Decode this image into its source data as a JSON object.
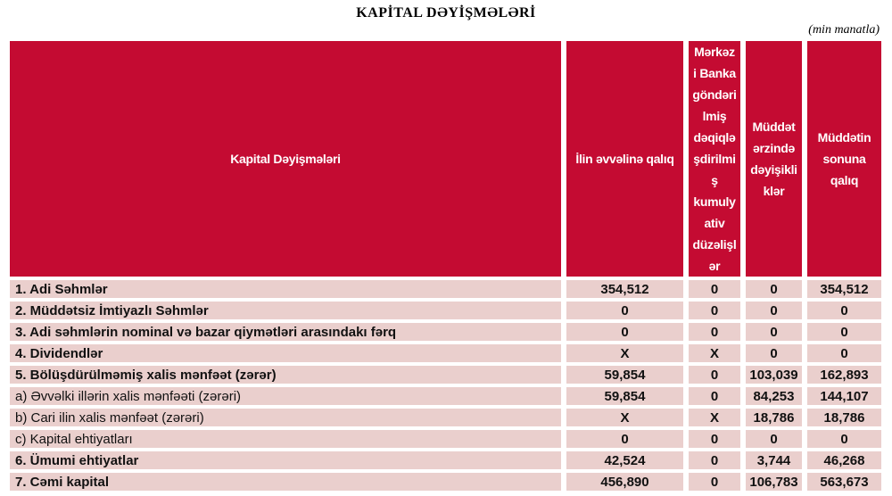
{
  "title": "KAPİTAL DƏYİŞMƏLƏRİ",
  "unit_note": "(min manatla)",
  "colors": {
    "header_bg": "#C40B32",
    "header_text": "#FFFFFF",
    "row_bg": "#EACFCD",
    "row_text": "#111111"
  },
  "table": {
    "columns": [
      {
        "label": "Kapital Dəyişmələri"
      },
      {
        "label": "İlin əvvəlinə qalıq"
      },
      {
        "label": "Mərkəz\ni Banka\ngöndəri\nlmiş\ndəqiqlə\nşdirilmi\nş\nkumuly\nativ\ndüzəlişl\nər"
      },
      {
        "label": "Müddət\nərzində\ndəyişikli\nklər"
      },
      {
        "label": "Müddətin\nsonuna\nqalıq"
      }
    ],
    "rows": [
      {
        "label": "1. Adi Səhmlər",
        "bold": true,
        "values": [
          "354,512",
          "0",
          "0",
          "354,512"
        ]
      },
      {
        "label": "2. Müddətsiz İmtiyazlı Səhmlər",
        "bold": true,
        "values": [
          "0",
          "0",
          "0",
          "0"
        ]
      },
      {
        "label": "3. Adi səhmlərin nominal və bazar qiymətləri arasındakı fərq",
        "bold": true,
        "values": [
          "0",
          "0",
          "0",
          "0"
        ]
      },
      {
        "label": "4. Dividendlər",
        "bold": true,
        "values": [
          "X",
          "X",
          "0",
          "0"
        ]
      },
      {
        "label": "5. Bölüşdürülməmiş xalis mənfəət (zərər)",
        "bold": true,
        "values": [
          "59,854",
          "0",
          "103,039",
          "162,893"
        ]
      },
      {
        "label": "a) Əvvəlki illərin xalis mənfəəti (zərəri)",
        "bold": false,
        "values": [
          "59,854",
          "0",
          "84,253",
          "144,107"
        ]
      },
      {
        "label": "b) Cari ilin xalis mənfəət (zərəri)",
        "bold": false,
        "values": [
          "X",
          "X",
          "18,786",
          "18,786"
        ]
      },
      {
        "label": "c) Kapital ehtiyatları",
        "bold": false,
        "values": [
          "0",
          "0",
          "0",
          "0"
        ]
      },
      {
        "label": "6. Ümumi ehtiyatlar",
        "bold": true,
        "values": [
          "42,524",
          "0",
          "3,744",
          "46,268"
        ]
      },
      {
        "label": "7. Cəmi kapital",
        "bold": true,
        "values": [
          "456,890",
          "0",
          "106,783",
          "563,673"
        ]
      }
    ]
  }
}
